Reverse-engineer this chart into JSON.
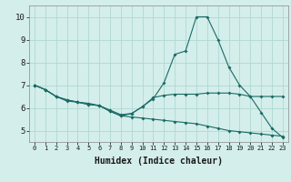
{
  "xlabel": "Humidex (Indice chaleur)",
  "bg_color": "#d4eeeb",
  "grid_color": "#b0d8d4",
  "line_color": "#1a6b64",
  "xlim": [
    -0.5,
    23.5
  ],
  "ylim": [
    4.5,
    10.5
  ],
  "xticks": [
    0,
    1,
    2,
    3,
    4,
    5,
    6,
    7,
    8,
    9,
    10,
    11,
    12,
    13,
    14,
    15,
    16,
    17,
    18,
    19,
    20,
    21,
    22,
    23
  ],
  "yticks": [
    5,
    6,
    7,
    8,
    9,
    10
  ],
  "line1_x": [
    0,
    1,
    2,
    3,
    4,
    5,
    6,
    7,
    8,
    9,
    10,
    11,
    12,
    13,
    14,
    15,
    16,
    17,
    18,
    19,
    20,
    21,
    22,
    23
  ],
  "line1_y": [
    7.0,
    6.8,
    6.5,
    6.3,
    6.25,
    6.15,
    6.1,
    5.85,
    5.65,
    5.75,
    6.05,
    6.4,
    7.1,
    8.35,
    8.5,
    10.0,
    10.0,
    9.0,
    7.8,
    7.0,
    6.5,
    5.8,
    5.1,
    4.7
  ],
  "line2_x": [
    0,
    1,
    2,
    3,
    4,
    5,
    6,
    7,
    8,
    9,
    10,
    11,
    12,
    13,
    14,
    15,
    16,
    17,
    18,
    19,
    20,
    21,
    22,
    23
  ],
  "line2_y": [
    7.0,
    6.8,
    6.5,
    6.35,
    6.25,
    6.2,
    6.1,
    5.9,
    5.7,
    5.75,
    6.05,
    6.45,
    6.55,
    6.6,
    6.6,
    6.6,
    6.65,
    6.65,
    6.65,
    6.6,
    6.5,
    6.5,
    6.5,
    6.5
  ],
  "line3_x": [
    0,
    1,
    2,
    3,
    4,
    5,
    6,
    7,
    8,
    9,
    10,
    11,
    12,
    13,
    14,
    15,
    16,
    17,
    18,
    19,
    20,
    21,
    22,
    23
  ],
  "line3_y": [
    7.0,
    6.8,
    6.5,
    6.35,
    6.25,
    6.15,
    6.1,
    5.85,
    5.65,
    5.6,
    5.55,
    5.5,
    5.45,
    5.4,
    5.35,
    5.3,
    5.2,
    5.1,
    5.0,
    4.95,
    4.9,
    4.85,
    4.8,
    4.75
  ],
  "xtick_fontsize": 5.0,
  "ytick_fontsize": 6.5,
  "xlabel_fontsize": 7.0
}
